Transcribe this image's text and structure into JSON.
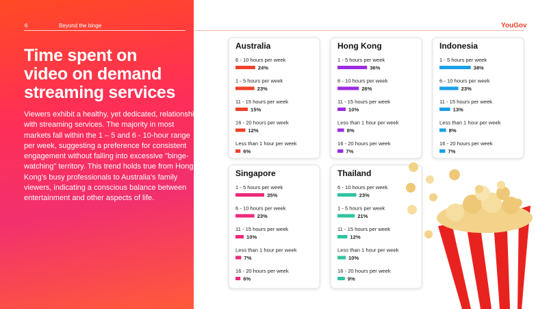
{
  "header": {
    "page_number": "6",
    "section": "Beyond the binge",
    "logo": "YouGov"
  },
  "title_lines": [
    "Time spent on",
    "video on demand",
    "streaming services"
  ],
  "body": "Viewers exhibit a healthy, yet dedicated, relationship with streaming services. The majority in most markets fall within the 1 – 5 and 6 - 10-hour range per week, suggesting a preference for consistent engagement without falling into excessive \"binge-watching\" territory. This trend holds true from Hong Kong's busy professionals to Australia's family viewers, indicating a conscious balance between entertainment and other aspects of life.",
  "cards": [
    {
      "title": "Australia",
      "color": "#f0412a",
      "labels": [
        "6 - 10 hours per week",
        "1 - 5 hours per week",
        "11 - 15 hours per week",
        "16 - 20 hours per week",
        "Less than 1 hour per week"
      ],
      "values": [
        24,
        23,
        15,
        12,
        6
      ],
      "value_labels": [
        "24%",
        "23%",
        "15%",
        "12%",
        "6%"
      ]
    },
    {
      "title": "Hong Kong",
      "color": "#9b2de0",
      "labels": [
        "1 - 5 hours per week",
        "6 - 10 hours per week",
        "11 - 15 hours per week",
        "Less than 1 hour per week",
        "16 - 20 hours per week"
      ],
      "values": [
        36,
        26,
        10,
        8,
        7
      ],
      "value_labels": [
        "36%",
        "26%",
        "10%",
        "8%",
        "7%"
      ]
    },
    {
      "title": "Indonesia",
      "color": "#1aa0e8",
      "labels": [
        "1 - 5 hours per week",
        "6 - 10 hours per week",
        "11 - 15 hours per week",
        "Less than 1 hour per week",
        "16 - 20 hours per week"
      ],
      "values": [
        38,
        23,
        13,
        8,
        7
      ],
      "value_labels": [
        "38%",
        "23%",
        "13%",
        "8%",
        "7%"
      ]
    },
    {
      "title": "Singapore",
      "color": "#ec2a7a",
      "labels": [
        "1 - 5 hours per week",
        "6 - 10 hours per week",
        "11 - 15 hours per week",
        "Less than 1 hour per week",
        "16 - 20 hours per week"
      ],
      "values": [
        35,
        23,
        10,
        7,
        6
      ],
      "value_labels": [
        "35%",
        "23%",
        "10%",
        "7%",
        "6%"
      ]
    },
    {
      "title": "Thailand",
      "color": "#2ec4a0",
      "labels": [
        "6 - 10 hours per week",
        "1 - 5 hours per week",
        "11 - 15 hours per week",
        "Less than 1 hour per week",
        "16 - 20 hours per week"
      ],
      "values": [
        23,
        21,
        12,
        10,
        9
      ],
      "value_labels": [
        "23%",
        "21%",
        "12%",
        "10%",
        "9%"
      ]
    }
  ]
}
